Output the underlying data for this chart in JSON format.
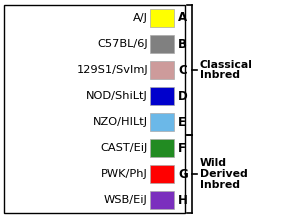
{
  "strains": [
    "A/J",
    "C57BL/6J",
    "129S1/SvImJ",
    "NOD/ShiLtJ",
    "NZO/HILtJ",
    "CAST/EiJ",
    "PWK/PhJ",
    "WSB/EiJ"
  ],
  "letters": [
    "A",
    "B",
    "C",
    "D",
    "E",
    "F",
    "G",
    "H"
  ],
  "colors": [
    "#FFFF00",
    "#808080",
    "#CD9B9B",
    "#0000CC",
    "#6BB8E8",
    "#228B22",
    "#FF0000",
    "#7B2FBE"
  ],
  "classical_label": [
    "Classical",
    "Inbred"
  ],
  "wild_label": [
    "Wild",
    "Derived",
    "Inbred"
  ],
  "background_color": "#FFFFFF",
  "border_color": "#000000",
  "text_color": "#000000",
  "figsize": [
    2.88,
    2.18
  ],
  "dpi": 100
}
